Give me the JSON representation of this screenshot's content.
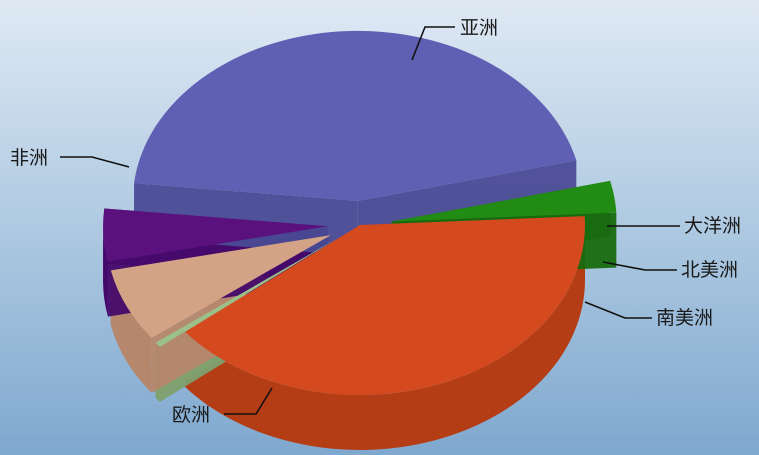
{
  "chart_data": {
    "type": "pie",
    "title": "",
    "slices": [
      {
        "label": "亚洲",
        "value": 40.0,
        "color": "#d44a1e",
        "side": "#b43d16"
      },
      {
        "label": "大洋洲",
        "value": 0.5,
        "color": "#9cc08a",
        "side": "#7fa06f"
      },
      {
        "label": "北美洲",
        "value": 7.0,
        "color": "#d4a285",
        "side": "#b5876c"
      },
      {
        "label": "南美洲",
        "value": 5.0,
        "color": "#5a117e",
        "side": "#45096a"
      },
      {
        "label": "欧洲",
        "value": 44.5,
        "color": "#5f5fb3",
        "side": "#4b4b95"
      },
      {
        "label": "非洲",
        "value": 3.0,
        "color": "#228b14",
        "side": "#186a0e"
      }
    ]
  }
}
